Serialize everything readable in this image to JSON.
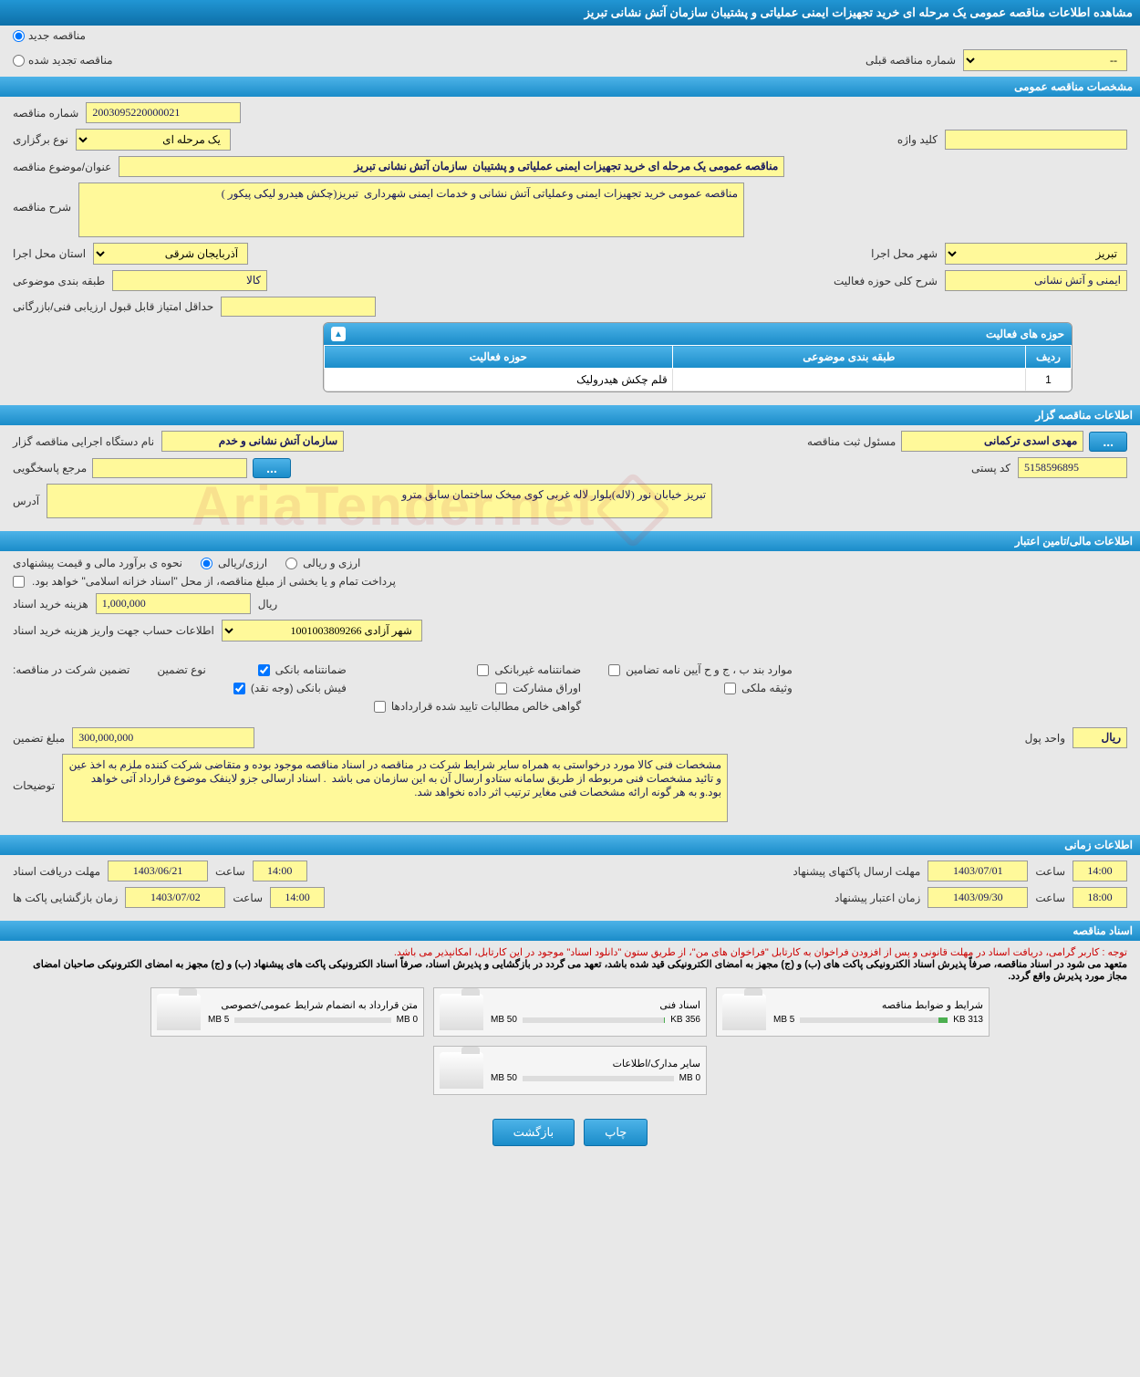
{
  "page_title": "مشاهده اطلاعات مناقصه عمومی یک مرحله ای خرید تجهیزات ایمنی عملیاتی و پشتیبان سازمان آتش نشانی تبریز",
  "radio_new": "مناقصه جدید",
  "radio_renewed": "مناقصه تجدید شده",
  "prev_tender_no_label": "شماره مناقصه قبلی",
  "prev_tender_no_value": "--",
  "sections": {
    "general": "مشخصات مناقصه عمومی",
    "organizer": "اطلاعات مناقصه گزار",
    "financial": "اطلاعات مالی/تامین اعتبار",
    "timing": "اطلاعات زمانی",
    "docs": "اسناد مناقصه"
  },
  "general": {
    "tender_no_label": "شماره مناقصه",
    "tender_no": "2003095220000021",
    "hold_type_label": "نوع برگزاری",
    "hold_type": "یک مرحله ای",
    "keyword_label": "کلید واژه",
    "subject_label": "عنوان/موضوع مناقصه",
    "subject": "مناقصه عمومی یک مرحله ای خرید تجهیزات ایمنی عملیاتی و پشتیبان  سازمان آتش نشانی تبریز",
    "desc_label": "شرح مناقصه",
    "desc": "مناقصه عمومی خرید تجهیزات ایمنی وعملیاتی آتش نشانی و خدمات ایمنی شهرداری  تبریز(چکش هیدرو لیکی پیکور )",
    "province_label": "استان محل اجرا",
    "province": "آذربایجان شرقی",
    "city_label": "شهر محل اجرا",
    "city": "تبریز",
    "category_label": "طبقه بندی موضوعی",
    "category": "کالا",
    "activity_scope_label": "شرح کلی حوزه فعالیت",
    "activity_scope": "ایمنی و آتش نشانی",
    "min_score_label": "حداقل امتیاز قابل قبول ارزیابی فنی/بازرگانی"
  },
  "activity_panel": {
    "title": "حوزه های فعالیت",
    "col_row": "ردیف",
    "col_category": "طبقه بندی موضوعی",
    "col_activity": "حوزه فعالیت",
    "rows": [
      {
        "n": "1",
        "cat": "",
        "act": "قلم چکش هیدرولیک"
      }
    ]
  },
  "organizer": {
    "org_name_label": "نام دستگاه اجرایی مناقصه گزار",
    "org_name": "سازمان آتش نشانی و خدم",
    "reg_officer_label": "مسئول ثبت مناقصه",
    "reg_officer": "مهدی اسدی ترکمانی",
    "contact_label": "مرجع پاسخگویی",
    "postal_label": "کد پستی",
    "postal": "5158596895",
    "address_label": "آدرس",
    "address": "تبریز خیابان نور (لاله)بلوار لاله غربی کوی میخک ساختمان سابق مترو"
  },
  "financial": {
    "est_method_label": "نحوه ی برآورد مالی و قیمت پیشنهادی",
    "opt_rial": "ارزی/ریالی",
    "opt_fx": "ارزی و ریالی",
    "payment_note": "پرداخت تمام و یا بخشی از مبلغ مناقصه، از محل \"اسناد خزانه اسلامی\" خواهد بود.",
    "doc_cost_label": "هزینه خرید اسناد",
    "doc_cost": "1,000,000",
    "rial": "ریال",
    "account_label": "اطلاعات حساب جهت واریز هزینه خرید اسناد",
    "account": "شهر آزادی 1001003809266",
    "guarantee_label": "تضمین شرکت در مناقصه:",
    "guarantee_type_label": "نوع تضمین",
    "g_bank": "ضمانتنامه بانکی",
    "g_nonbank": "ضمانتنامه غیربانکی",
    "g_cases": "موارد بند ب ، ج و ح آیین نامه تضامین",
    "g_cash": "فیش بانکی (وجه نقد)",
    "g_securities": "اوراق مشارکت",
    "g_property": "وثیقه ملکی",
    "g_net": "گواهی خالص مطالبات تایید شده قراردادها",
    "guarantee_amt_label": "مبلغ تضمین",
    "guarantee_amt": "300,000,000",
    "currency_label": "واحد پول",
    "currency": "ریال",
    "notes_label": "توضیحات",
    "notes": "مشخصات فنی کالا مورد درخواستی به همراه سایر شرایط شرکت در مناقصه در اسناد مناقصه موجود بوده و متقاضی شرکت کننده ملزم به اخذ عین و تائید مشخصات فنی مربوطه از طریق سامانه ستادو ارسال آن به این سازمان می باشد  . اسناد ارسالی جزو لاینفک موضوع قرارداد آتی خواهد بود.و به هر گونه ارائه مشخصات فنی مغایر ترتیب اثر داده نخواهد شد."
  },
  "timing": {
    "receive_deadline_label": "مهلت دریافت اسناد",
    "receive_deadline_date": "1403/06/21",
    "time1": "14:00",
    "hour_label": "ساعت",
    "submit_deadline_label": "مهلت ارسال پاکتهای پیشنهاد",
    "submit_deadline_date": "1403/07/01",
    "time2": "14:00",
    "open_time_label": "زمان بازگشایی پاکت ها",
    "open_date": "1403/07/02",
    "time3": "14:00",
    "validity_label": "زمان اعتبار پیشنهاد",
    "validity_date": "1403/09/30",
    "time4": "18:00"
  },
  "docs": {
    "note1": "توجه : کاربر گرامی، دریافت اسناد در مهلت قانونی و پس از افزودن فراخوان به کارتابل \"فراخوان های من\"، از طریق ستون \"دانلود اسناد\" موجود در این کارتابل، امکانپذیر می باشد.",
    "note2": "متعهد می شود در اسناد مناقصه، صرفاً پذیرش اسناد الکترونیکی پاکت های (ب) و (ج) مجهز به امضای الکترونیکی قید شده باشد، تعهد می گردد در بازگشایی و پذیرش اسناد، صرفاً اسناد الکترونیکی پاکت های پیشنهاد (ب) و (ج) مجهز به امضای الکترونیکی صاحبان امضای مجاز مورد پذیرش واقع گردد.",
    "items": [
      {
        "title": "شرایط و ضوابط مناقصه",
        "used": "313 KB",
        "total": "5 MB",
        "pct": 6
      },
      {
        "title": "اسناد فنی",
        "used": "356 KB",
        "total": "50 MB",
        "pct": 1
      },
      {
        "title": "متن قرارداد به انضمام شرایط عمومی/خصوصی",
        "used": "0 MB",
        "total": "5 MB",
        "pct": 0
      },
      {
        "title": "سایر مدارک/اطلاعات",
        "used": "0 MB",
        "total": "50 MB",
        "pct": 0
      }
    ]
  },
  "buttons": {
    "print": "چاپ",
    "back": "بازگشت"
  },
  "watermark": "AriaTender.net",
  "colors": {
    "header_grad_top": "#4db3e8",
    "header_grad_bottom": "#1a8cc9",
    "field_bg": "#fff99a",
    "page_bg": "#e8e8e8"
  }
}
